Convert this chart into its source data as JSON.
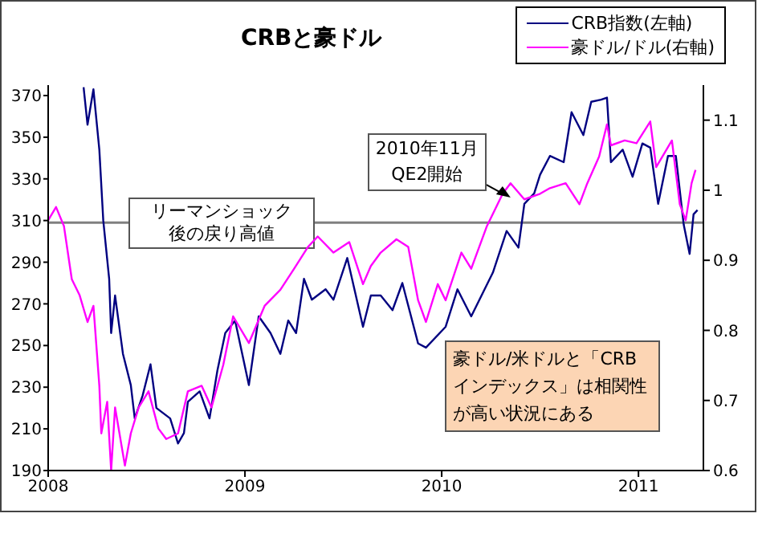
{
  "chart_data": {
    "type": "line",
    "title": "CRBと豪ドル",
    "xlim": [
      2008,
      2011.33
    ],
    "xticks": [
      2008,
      2009,
      2010,
      2011
    ],
    "ylim": [
      190,
      375
    ],
    "yticks": [
      190,
      210,
      230,
      250,
      270,
      290,
      310,
      330,
      350,
      370
    ],
    "y2lim": [
      0.6,
      1.15
    ],
    "y2ticks": [
      0.6,
      0.7,
      0.8,
      0.9,
      1,
      1.1
    ],
    "grid": false,
    "legend": "top right",
    "series": [
      {
        "name": "CRB指数(左軸)",
        "color": "#000080",
        "axis": "y",
        "x": [
          2008.18,
          2008.2,
          2008.23,
          2008.26,
          2008.28,
          2008.31,
          2008.32,
          2008.34,
          2008.38,
          2008.42,
          2008.44,
          2008.48,
          2008.52,
          2008.55,
          2008.62,
          2008.66,
          2008.69,
          2008.71,
          2008.77,
          2008.82,
          2008.86,
          2008.9,
          2008.95,
          2009.02,
          2009.07,
          2009.13,
          2009.18,
          2009.22,
          2009.26,
          2009.3,
          2009.34,
          2009.41,
          2009.45,
          2009.52,
          2009.6,
          2009.64,
          2009.69,
          2009.75,
          2009.8,
          2009.88,
          2009.92,
          2010.02,
          2010.08,
          2010.15,
          2010.26,
          2010.33,
          2010.39,
          2010.42,
          2010.47,
          2010.5,
          2010.55,
          2010.62,
          2010.66,
          2010.72,
          2010.76,
          2010.81,
          2010.84,
          2010.86,
          2010.92,
          2010.97,
          2011.02,
          2011.06,
          2011.1,
          2011.15,
          2011.19,
          2011.23,
          2011.26,
          2011.28,
          2011.3
        ],
        "values": [
          374,
          356,
          373,
          344,
          310,
          282,
          256,
          274,
          246,
          231,
          215,
          226,
          241,
          220,
          215,
          203,
          208,
          223,
          228,
          215,
          238,
          256,
          262,
          231,
          264,
          256,
          246,
          262,
          256,
          282,
          272,
          277,
          272,
          292,
          259,
          274,
          274,
          267,
          280,
          251,
          249,
          259,
          277,
          264,
          285,
          305,
          297,
          318,
          323,
          332,
          341,
          338,
          362,
          351,
          367,
          368,
          369,
          338,
          344,
          331,
          347,
          345,
          318,
          341,
          341,
          308,
          294,
          313,
          315
        ]
      },
      {
        "name": "豪ドル/ドル(右軸)",
        "color": "#ff00ff",
        "axis": "y2",
        "x": [
          2008.0,
          2008.04,
          2008.08,
          2008.12,
          2008.16,
          2008.2,
          2008.23,
          2008.26,
          2008.27,
          2008.3,
          2008.32,
          2008.34,
          2008.39,
          2008.42,
          2008.46,
          2008.51,
          2008.56,
          2008.6,
          2008.66,
          2008.71,
          2008.78,
          2008.83,
          2008.89,
          2008.94,
          2009.02,
          2009.1,
          2009.18,
          2009.25,
          2009.32,
          2009.37,
          2009.45,
          2009.53,
          2009.6,
          2009.64,
          2009.69,
          2009.77,
          2009.83,
          2009.88,
          2009.92,
          2009.98,
          2010.02,
          2010.1,
          2010.15,
          2010.23,
          2010.31,
          2010.35,
          2010.42,
          2010.5,
          2010.55,
          2010.63,
          2010.7,
          2010.74,
          2010.8,
          2010.84,
          2010.86,
          2010.93,
          2010.99,
          2011.06,
          2011.09,
          2011.17,
          2011.21,
          2011.24,
          2011.27,
          2011.29
        ],
        "values": [
          0.957,
          0.976,
          0.949,
          0.873,
          0.85,
          0.812,
          0.835,
          0.721,
          0.653,
          0.698,
          0.6,
          0.69,
          0.607,
          0.653,
          0.69,
          0.713,
          0.66,
          0.645,
          0.653,
          0.713,
          0.721,
          0.69,
          0.751,
          0.82,
          0.782,
          0.835,
          0.858,
          0.888,
          0.919,
          0.934,
          0.911,
          0.926,
          0.866,
          0.892,
          0.911,
          0.93,
          0.919,
          0.843,
          0.812,
          0.866,
          0.843,
          0.911,
          0.888,
          0.949,
          0.995,
          1.01,
          0.987,
          0.995,
          1.003,
          1.01,
          0.98,
          1.01,
          1.048,
          1.094,
          1.064,
          1.071,
          1.067,
          1.098,
          1.033,
          1.071,
          0.98,
          0.957,
          1.01,
          1.029
        ]
      }
    ],
    "ref_lines": [
      {
        "axis": "y",
        "value": 309,
        "label": "リーマンショック後の戻り高値",
        "color": "#808080"
      }
    ],
    "annotations": [
      {
        "text": "2010年11月QE2開始",
        "x": 2010.35,
        "y": 321
      },
      "豪ドル/米ドルと「CRBインデックス」は相関性が高い状況にある"
    ]
  }
}
